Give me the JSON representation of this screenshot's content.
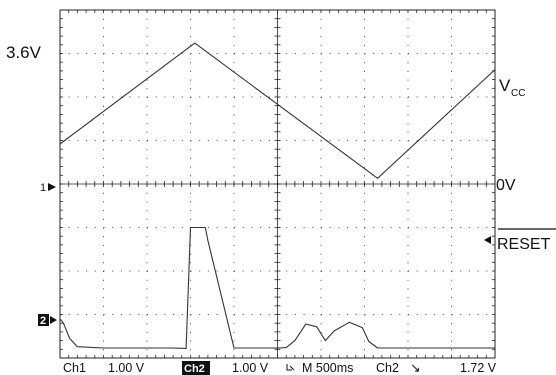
{
  "chart_data": {
    "type": "line",
    "title": "",
    "xlabel": "",
    "ylabel": "",
    "grid": true,
    "x_divisions": 10,
    "y_divisions": 8,
    "x_range_div": [
      0,
      10
    ],
    "y_range_div": [
      -4,
      4
    ],
    "series": [
      {
        "name": "Vcc",
        "channel": "Ch1",
        "x": [
          0,
          3.1,
          7.3,
          10
        ],
        "y": [
          0.92,
          3.24,
          0.13,
          2.63
        ]
      },
      {
        "name": "RESET",
        "channel": "Ch2",
        "x": [
          0,
          0.08,
          0.22,
          0.4,
          1.0,
          2.3,
          2.58,
          2.9,
          3.0,
          3.34,
          3.4,
          4.0,
          5.0,
          5.2,
          5.4,
          5.65,
          5.9,
          6.1,
          6.3,
          6.65,
          6.95,
          7.1,
          7.3,
          8.0,
          9.0,
          10.0
        ],
        "y": [
          -3.1,
          -3.2,
          -3.55,
          -3.74,
          -3.77,
          -3.77,
          -3.77,
          -3.78,
          -1.0,
          -1.0,
          -1.3,
          -3.77,
          -3.77,
          -3.76,
          -3.6,
          -3.22,
          -3.28,
          -3.6,
          -3.38,
          -3.18,
          -3.3,
          -3.62,
          -3.77,
          -3.77,
          -3.77,
          -3.77
        ]
      }
    ],
    "annotations": {
      "voltage_3_6": "3.6V",
      "vcc_main": "V",
      "vcc_sub": "CC",
      "zero_volt": "0V",
      "reset": "RESET",
      "ch1_marker": "1",
      "ch2_marker": "2"
    },
    "readout": {
      "ch1": "Ch1",
      "ch1_scale": "1.00 V",
      "ch2": "Ch2",
      "ch2_scale": "1.00 V",
      "timebase": "M 500ms",
      "trigger_ch": "Ch2",
      "trigger_slope": "↘",
      "trigger_level": "1.72 V"
    },
    "colors": {
      "trace": "#333333",
      "grid": "#444444",
      "background": "#ffffff"
    }
  }
}
